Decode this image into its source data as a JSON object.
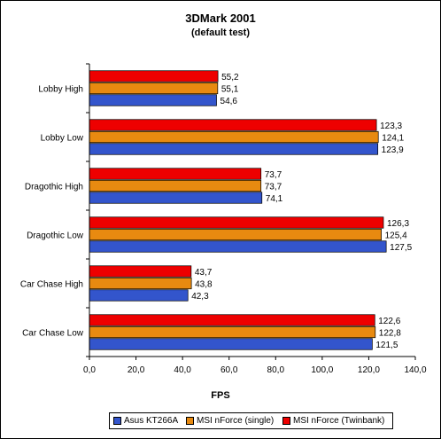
{
  "chart_data": {
    "type": "bar",
    "orientation": "horizontal",
    "title": "3DMark 2001",
    "subtitle": "(default test)",
    "xlabel": "FPS",
    "ylabel": "",
    "xlim": [
      0,
      140
    ],
    "xticks": [
      "0,0",
      "20,0",
      "40,0",
      "60,0",
      "80,0",
      "100,0",
      "120,0",
      "140,0"
    ],
    "grid": false,
    "legend_position": "bottom",
    "categories": [
      "Lobby High",
      "Lobby Low",
      "Dragothic High",
      "Dragothic Low",
      "Car Chase High",
      "Car Chase Low"
    ],
    "series": [
      {
        "name": "Asus KT266A",
        "color": "#3355cc",
        "values": [
          54.6,
          123.9,
          74.1,
          127.5,
          42.3,
          121.5
        ],
        "labels": [
          "54,6",
          "123,9",
          "74,1",
          "127,5",
          "42,3",
          "121,5"
        ]
      },
      {
        "name": "MSI nForce (single)",
        "color": "#e88a10",
        "values": [
          55.1,
          124.1,
          73.7,
          125.4,
          43.8,
          122.8
        ],
        "labels": [
          "55,1",
          "124,1",
          "73,7",
          "125,4",
          "43,8",
          "122,8"
        ]
      },
      {
        "name": "MSI nForce (Twinbank)",
        "color": "#ee0000",
        "values": [
          55.2,
          123.3,
          73.7,
          126.3,
          43.7,
          122.6
        ],
        "labels": [
          "55,2",
          "123,3",
          "73,7",
          "126,3",
          "43,7",
          "122,6"
        ]
      }
    ]
  }
}
